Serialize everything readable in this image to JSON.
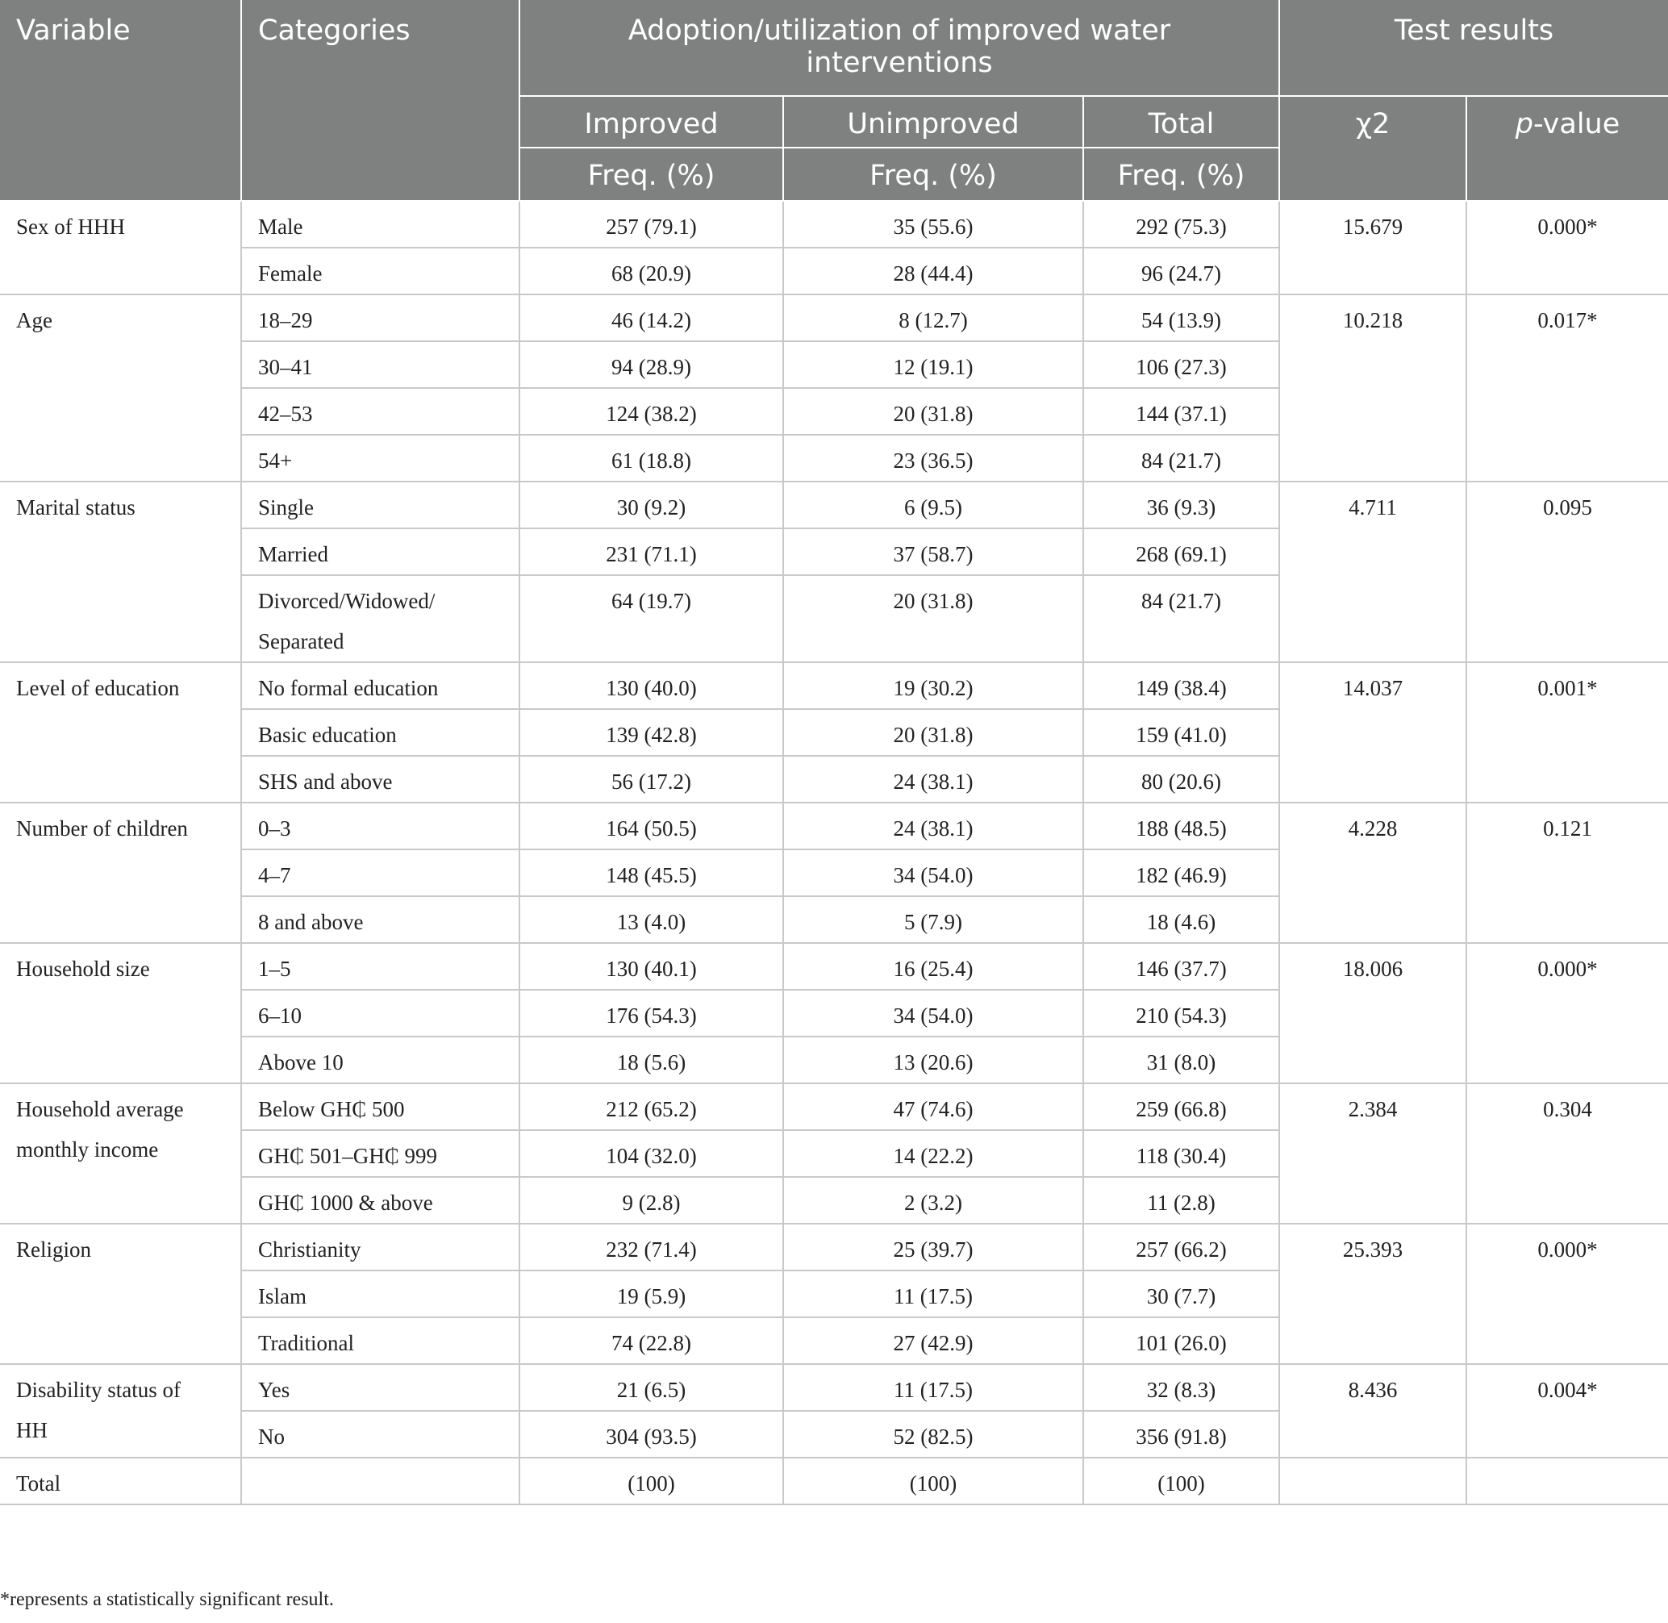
{
  "header": {
    "variable": "Variable",
    "categories": "Categories",
    "group": "Adoption/utilization of improved water interventions",
    "test_results": "Test results",
    "improved": "Improved",
    "unimproved": "Unimproved",
    "total": "Total",
    "freq": "Freq. (%)",
    "chi2": "χ2",
    "p_italic": "p",
    "p_rest": "-value"
  },
  "groups": [
    {
      "variable": [
        "Sex of HHH"
      ],
      "chi2": "15.679",
      "p": "0.000*",
      "rows": [
        {
          "cat": [
            "Male"
          ],
          "imp": "257 (79.1)",
          "unimp": "35 (55.6)",
          "tot": "292 (75.3)"
        },
        {
          "cat": [
            "Female"
          ],
          "imp": "68 (20.9)",
          "unimp": "28 (44.4)",
          "tot": "96 (24.7)"
        }
      ]
    },
    {
      "variable": [
        "Age"
      ],
      "chi2": "10.218",
      "p": "0.017*",
      "rows": [
        {
          "cat": [
            "18–29"
          ],
          "imp": "46 (14.2)",
          "unimp": "8 (12.7)",
          "tot": "54 (13.9)"
        },
        {
          "cat": [
            "30–41"
          ],
          "imp": "94 (28.9)",
          "unimp": "12 (19.1)",
          "tot": "106 (27.3)"
        },
        {
          "cat": [
            "42–53"
          ],
          "imp": "124 (38.2)",
          "unimp": "20 (31.8)",
          "tot": "144 (37.1)"
        },
        {
          "cat": [
            "54+"
          ],
          "imp": "61 (18.8)",
          "unimp": "23 (36.5)",
          "tot": "84 (21.7)"
        }
      ]
    },
    {
      "variable": [
        "Marital status"
      ],
      "chi2": "4.711",
      "p": "0.095",
      "rows": [
        {
          "cat": [
            "Single"
          ],
          "imp": "30 (9.2)",
          "unimp": "6 (9.5)",
          "tot": "36 (9.3)"
        },
        {
          "cat": [
            "Married"
          ],
          "imp": "231 (71.1)",
          "unimp": "37 (58.7)",
          "tot": "268 (69.1)"
        },
        {
          "cat": [
            "Divorced/Widowed/",
            "Separated"
          ],
          "imp": "64 (19.7)",
          "unimp": "20 (31.8)",
          "tot": "84 (21.7)"
        }
      ]
    },
    {
      "variable": [
        "Level of education"
      ],
      "chi2": "14.037",
      "p": "0.001*",
      "rows": [
        {
          "cat": [
            "No formal education"
          ],
          "imp": "130 (40.0)",
          "unimp": "19 (30.2)",
          "tot": "149 (38.4)"
        },
        {
          "cat": [
            "Basic education"
          ],
          "imp": "139 (42.8)",
          "unimp": "20 (31.8)",
          "tot": "159 (41.0)"
        },
        {
          "cat": [
            "SHS and above"
          ],
          "imp": "56 (17.2)",
          "unimp": "24 (38.1)",
          "tot": "80 (20.6)"
        }
      ]
    },
    {
      "variable": [
        "Number of children"
      ],
      "chi2": "4.228",
      "p": "0.121",
      "rows": [
        {
          "cat": [
            "0–3"
          ],
          "imp": "164 (50.5)",
          "unimp": "24 (38.1)",
          "tot": "188 (48.5)"
        },
        {
          "cat": [
            "4–7"
          ],
          "imp": "148 (45.5)",
          "unimp": "34 (54.0)",
          "tot": "182 (46.9)"
        },
        {
          "cat": [
            "8 and above"
          ],
          "imp": "13 (4.0)",
          "unimp": "5 (7.9)",
          "tot": "18 (4.6)"
        }
      ]
    },
    {
      "variable": [
        "Household size"
      ],
      "chi2": "18.006",
      "p": "0.000*",
      "rows": [
        {
          "cat": [
            "1–5"
          ],
          "imp": "130 (40.1)",
          "unimp": "16 (25.4)",
          "tot": "146 (37.7)"
        },
        {
          "cat": [
            "6–10"
          ],
          "imp": "176 (54.3)",
          "unimp": "34 (54.0)",
          "tot": "210 (54.3)"
        },
        {
          "cat": [
            "Above 10"
          ],
          "imp": "18 (5.6)",
          "unimp": "13 (20.6)",
          "tot": "31 (8.0)"
        }
      ]
    },
    {
      "variable": [
        "Household average",
        "monthly income"
      ],
      "chi2": "2.384",
      "p": "0.304",
      "rows": [
        {
          "cat": [
            "Below GH₵ 500"
          ],
          "imp": "212 (65.2)",
          "unimp": "47 (74.6)",
          "tot": "259 (66.8)"
        },
        {
          "cat": [
            "GH₵ 501–GH₵ 999"
          ],
          "imp": "104 (32.0)",
          "unimp": "14 (22.2)",
          "tot": "118 (30.4)"
        },
        {
          "cat": [
            "GH₵ 1000 & above"
          ],
          "imp": "9 (2.8)",
          "unimp": "2 (3.2)",
          "tot": "11 (2.8)"
        }
      ]
    },
    {
      "variable": [
        "Religion"
      ],
      "chi2": "25.393",
      "p": "0.000*",
      "rows": [
        {
          "cat": [
            "Christianity"
          ],
          "imp": "232 (71.4)",
          "unimp": "25 (39.7)",
          "tot": "257 (66.2)"
        },
        {
          "cat": [
            "Islam"
          ],
          "imp": "19 (5.9)",
          "unimp": "11 (17.5)",
          "tot": "30 (7.7)"
        },
        {
          "cat": [
            "Traditional"
          ],
          "imp": "74 (22.8)",
          "unimp": "27 (42.9)",
          "tot": "101 (26.0)"
        }
      ]
    },
    {
      "variable": [
        "Disability status of",
        "HH"
      ],
      "chi2": "8.436",
      "p": "0.004*",
      "rows": [
        {
          "cat": [
            "Yes"
          ],
          "imp": "21 (6.5)",
          "unimp": "11 (17.5)",
          "tot": "32 (8.3)"
        },
        {
          "cat": [
            "No"
          ],
          "imp": "304 (93.5)",
          "unimp": "52 (82.5)",
          "tot": "356 (91.8)"
        }
      ]
    },
    {
      "variable": [
        "Total"
      ],
      "chi2": "",
      "p": "",
      "rows": [
        {
          "cat": [
            ""
          ],
          "imp": "(100)",
          "unimp": "(100)",
          "tot": "(100)"
        }
      ]
    }
  ],
  "footnote": "*represents a statistically significant result."
}
